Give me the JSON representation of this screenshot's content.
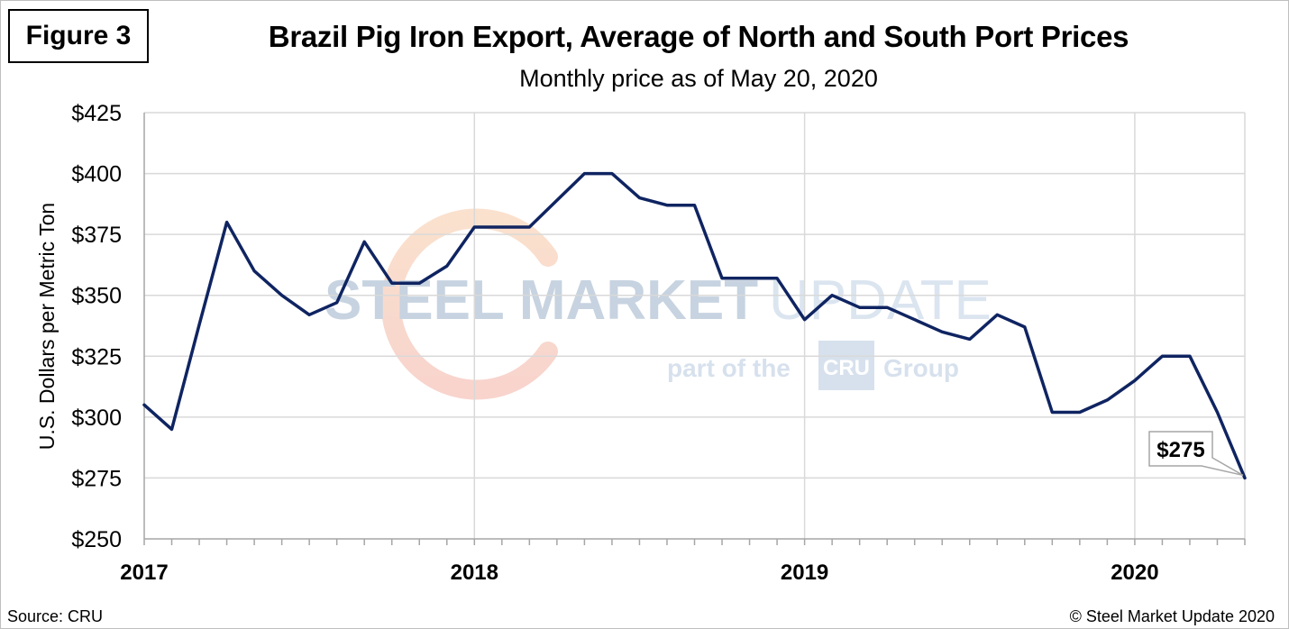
{
  "figure_label": "Figure 3",
  "source": "Source: CRU",
  "copyright": "© Steel Market Update 2020",
  "watermark": {
    "main_bold": "STEEL MARKET",
    "main_light": "UPDATE",
    "sub_before": "part of the",
    "sub_logo": "CRU",
    "sub_after": "Group"
  },
  "colors": {
    "line": "#0f2461",
    "grid": "#d9d9d9",
    "axis": "#a6a6a6",
    "watermark_blue": "#9bb0c8",
    "watermark_light": "#bfd0e4",
    "watermark_arc": "#f3b48c"
  },
  "chart_data": {
    "type": "line",
    "title": "Brazil Pig Iron Export, Average of North and South Port Prices",
    "subtitle": "Monthly price as of May 20, 2020",
    "xlabel": "",
    "ylabel": "U.S. Dollars per Metric Ton",
    "ylim": [
      250,
      425
    ],
    "yticks": [
      250,
      275,
      300,
      325,
      350,
      375,
      400,
      425
    ],
    "ytick_labels": [
      "$250",
      "$275",
      "$300",
      "$325",
      "$350",
      "$375",
      "$400",
      "$425"
    ],
    "xlim": [
      0,
      40
    ],
    "year_ticks": [
      {
        "label": "2017",
        "x": 0
      },
      {
        "label": "2018",
        "x": 12
      },
      {
        "label": "2019",
        "x": 24
      },
      {
        "label": "2020",
        "x": 36
      }
    ],
    "grid": true,
    "series": [
      {
        "name": "Brazil Pig Iron Export",
        "x": [
          0,
          1,
          2,
          3,
          4,
          5,
          6,
          7,
          8,
          9,
          10,
          11,
          12,
          13,
          14,
          15,
          16,
          17,
          18,
          19,
          20,
          21,
          22,
          23,
          24,
          25,
          26,
          27,
          28,
          29,
          30,
          31,
          32,
          33,
          34,
          35,
          36,
          37,
          38,
          39,
          40
        ],
        "values": [
          305,
          295,
          338,
          380,
          360,
          350,
          342,
          347,
          372,
          355,
          355,
          362,
          378,
          378,
          378,
          389,
          400,
          400,
          390,
          387,
          387,
          357,
          357,
          357,
          340,
          350,
          345,
          345,
          340,
          335,
          332,
          342,
          337,
          302,
          302,
          307,
          315,
          325,
          325,
          302,
          275
        ]
      }
    ],
    "annotation": {
      "text": "$275",
      "x": 40,
      "y": 275
    }
  }
}
